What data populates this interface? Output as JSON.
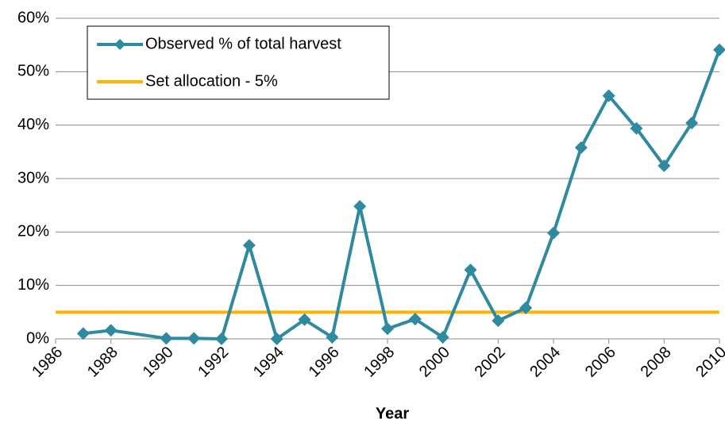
{
  "chart_data": {
    "type": "line",
    "x_label": "Year",
    "xlim": [
      1986,
      2010
    ],
    "xticks": [
      1986,
      1988,
      1990,
      1992,
      1994,
      1996,
      1998,
      2000,
      2002,
      2004,
      2006,
      2008,
      2010
    ],
    "ylim": [
      0,
      60
    ],
    "yticks": [
      {
        "value": 0,
        "label": "0%"
      },
      {
        "value": 10,
        "label": "10%"
      },
      {
        "value": 20,
        "label": "20%"
      },
      {
        "value": 30,
        "label": "30%"
      },
      {
        "value": 40,
        "label": "40%"
      },
      {
        "value": 50,
        "label": "50%"
      },
      {
        "value": 60,
        "label": "60%"
      }
    ],
    "grid": true,
    "legend": "upper left",
    "series": [
      {
        "name": "Observed % of total harvest",
        "color": "#2f8aa0",
        "marker": "diamond",
        "x": [
          1987,
          1988,
          1990,
          1991,
          1992,
          1993,
          1994,
          1995,
          1996,
          1997,
          1998,
          1999,
          2000,
          2001,
          2002,
          2003,
          2004,
          2005,
          2006,
          2007,
          2008,
          2009,
          2010
        ],
        "values": [
          1.0,
          1.6,
          0.1,
          0.1,
          0,
          17.5,
          0,
          3.6,
          0.3,
          24.8,
          1.9,
          3.7,
          0.3,
          12.9,
          3.4,
          5.8,
          19.8,
          35.8,
          45.5,
          39.4,
          32.4,
          40.4,
          54.1
        ]
      },
      {
        "name": "Set allocation - 5%",
        "color": "#ffb400",
        "marker": "none",
        "x": [
          1986,
          2010
        ],
        "values": [
          5,
          5
        ]
      }
    ]
  }
}
